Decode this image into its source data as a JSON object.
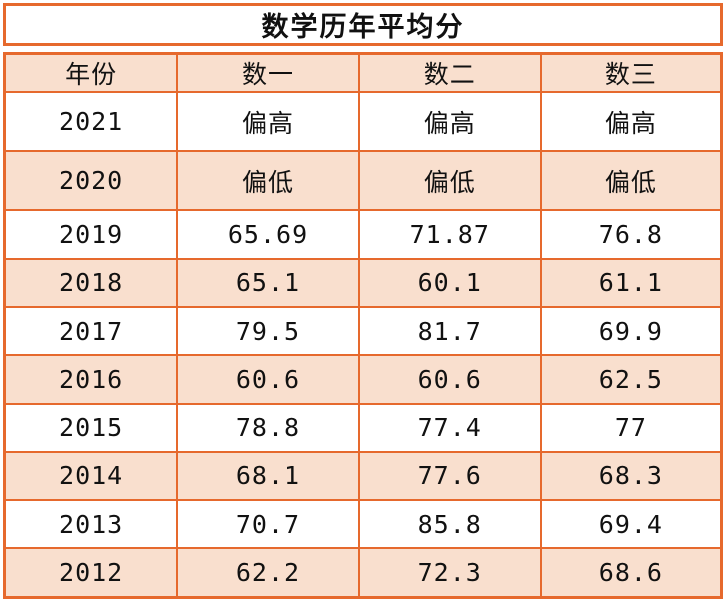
{
  "chart_data": {
    "type": "table",
    "title": "数学历年平均分",
    "columns": [
      "年份",
      "数一",
      "数二",
      "数三"
    ],
    "rows": [
      [
        "2021",
        "偏高",
        "偏高",
        "偏高"
      ],
      [
        "2020",
        "偏低",
        "偏低",
        "偏低"
      ],
      [
        "2019",
        "65.69",
        "71.87",
        "76.8"
      ],
      [
        "2018",
        "65.1",
        "60.1",
        "61.1"
      ],
      [
        "2017",
        "79.5",
        "81.7",
        "69.9"
      ],
      [
        "2016",
        "60.6",
        "60.6",
        "62.5"
      ],
      [
        "2015",
        "78.8",
        "77.4",
        "77"
      ],
      [
        "2014",
        "68.1",
        "77.6",
        "68.3"
      ],
      [
        "2013",
        "70.7",
        "85.8",
        "69.4"
      ],
      [
        "2012",
        "62.2",
        "72.3",
        "68.6"
      ]
    ],
    "layout": {
      "header_fill_rows": "alternating starting at 2020",
      "grid": "on",
      "title_position": "top-center"
    }
  },
  "colors": {
    "accent_border": "#e6692d",
    "row_fill": "#f9dfce",
    "text": "#111111",
    "background": "#ffffff"
  }
}
